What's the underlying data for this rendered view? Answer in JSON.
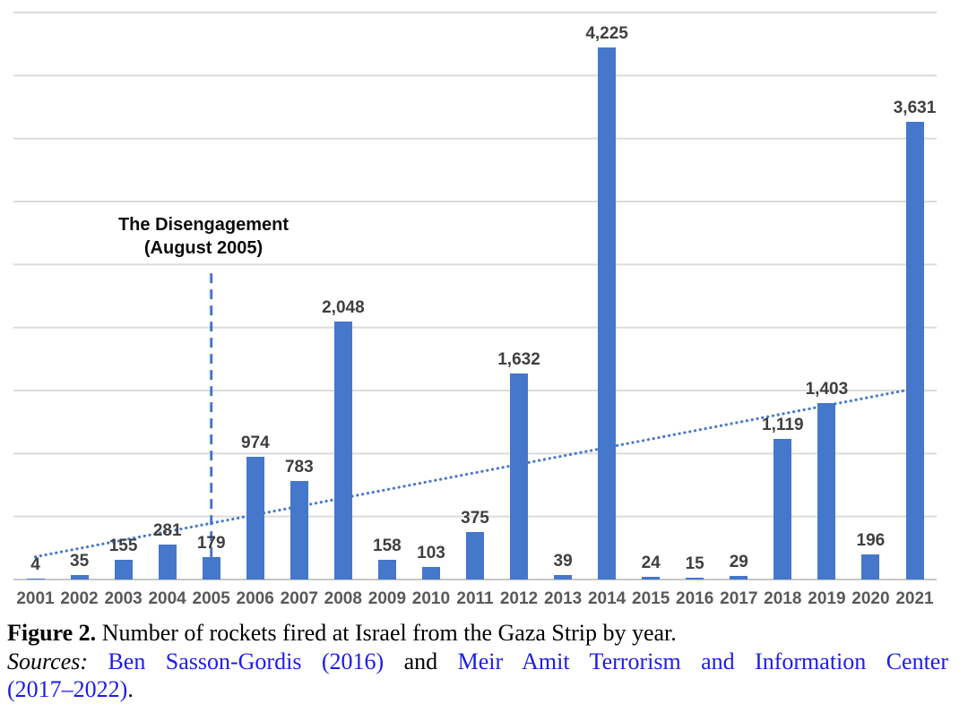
{
  "chart_data": {
    "type": "bar",
    "title": "",
    "categories": [
      "2001",
      "2002",
      "2003",
      "2004",
      "2005",
      "2006",
      "2007",
      "2008",
      "2009",
      "2010",
      "2011",
      "2012",
      "2013",
      "2014",
      "2015",
      "2016",
      "2017",
      "2018",
      "2019",
      "2020",
      "2021"
    ],
    "values": [
      4,
      35,
      155,
      281,
      179,
      974,
      783,
      2048,
      158,
      103,
      375,
      1632,
      39,
      4225,
      24,
      15,
      29,
      1119,
      1403,
      196,
      3631
    ],
    "value_labels": [
      "4",
      "35",
      "155",
      "281",
      "179",
      "974",
      "783",
      "2,048",
      "158",
      "103",
      "375",
      "1,632",
      "39",
      "4,225",
      "24",
      "15",
      "29",
      "1,119",
      "1,403",
      "196",
      "3,631"
    ],
    "xlabel": "",
    "ylabel": "",
    "ylim": [
      0,
      4500
    ],
    "gridline_interval": 500,
    "y_axis_tick_labels_visible": false,
    "legend": "none",
    "grid": "horizontal",
    "bar_color": "#4577CB",
    "gridline_color": "#DBDBDB",
    "axis_line_color": "#C6C6C6",
    "value_label_color": "#3F3F3F",
    "year_label_color": "#595959",
    "trendline": {
      "type": "linear",
      "style": "dotted",
      "color": "#4577CB",
      "start_category": "2001",
      "end_category": "2021",
      "start_value": 180,
      "end_value": 1515
    },
    "annotation": {
      "line1": "The Disengagement",
      "line2": "(August 2005)",
      "marker_category": "2005",
      "marker_style": "dashed",
      "marker_color": "#4577CB",
      "marker_top_value": 2430
    }
  },
  "caption": {
    "figure_label": "Figure 2.",
    "figure_text": " Number of rockets fired at Israel from the Gaza Strip by year.",
    "sources_label": "Sources:",
    "space1": " ",
    "source_link_1": "Ben Sasson-Gordis (2016)",
    "connector": " and ",
    "source_link_2": "Meir Amit Terrorism and Information Center",
    "source_link_2_cont": "(2017–2022)",
    "final_period": "."
  }
}
